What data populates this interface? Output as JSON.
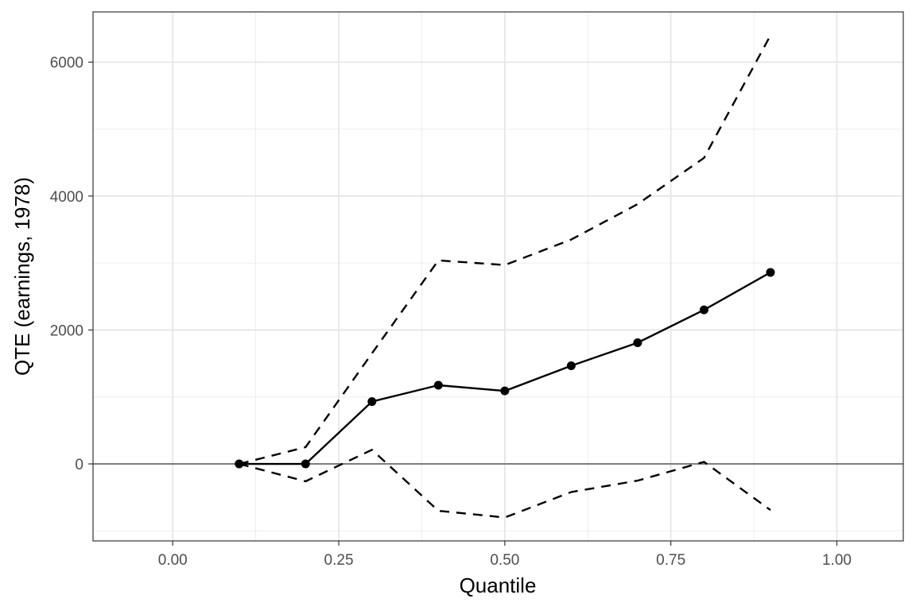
{
  "chart_data": {
    "type": "line",
    "title": "",
    "xlabel": "Quantile",
    "ylabel": "QTE (earnings, 1978)",
    "xlim": [
      -0.12,
      1.1
    ],
    "ylim": [
      -1150,
      6750
    ],
    "x_ticks": [
      0.0,
      0.25,
      0.5,
      0.75,
      1.0
    ],
    "x_tick_labels": [
      "0.00",
      "0.25",
      "0.50",
      "0.75",
      "1.00"
    ],
    "y_ticks": [
      0,
      2000,
      4000,
      6000
    ],
    "y_tick_labels": [
      "0",
      "2000",
      "4000",
      "6000"
    ],
    "grid": true,
    "legend": "none",
    "reference_line": {
      "y": 0,
      "color": "#808080"
    },
    "x": [
      0.1,
      0.2,
      0.3,
      0.4,
      0.5,
      0.6,
      0.7,
      0.8,
      0.9
    ],
    "series": [
      {
        "role": "estimate",
        "style": "solid",
        "markers": true,
        "color": "#000000",
        "values": [
          0,
          0,
          930,
          1175,
          1090,
          1465,
          1810,
          2300,
          2860
        ]
      },
      {
        "role": "upper",
        "style": "dashed",
        "markers": false,
        "color": "#000000",
        "values": [
          0,
          250,
          1650,
          3040,
          2970,
          3350,
          3880,
          4570,
          6400
        ]
      },
      {
        "role": "lower",
        "style": "dashed",
        "markers": false,
        "color": "#000000",
        "values": [
          0,
          -260,
          210,
          -700,
          -800,
          -420,
          -250,
          30,
          -690
        ]
      }
    ]
  }
}
